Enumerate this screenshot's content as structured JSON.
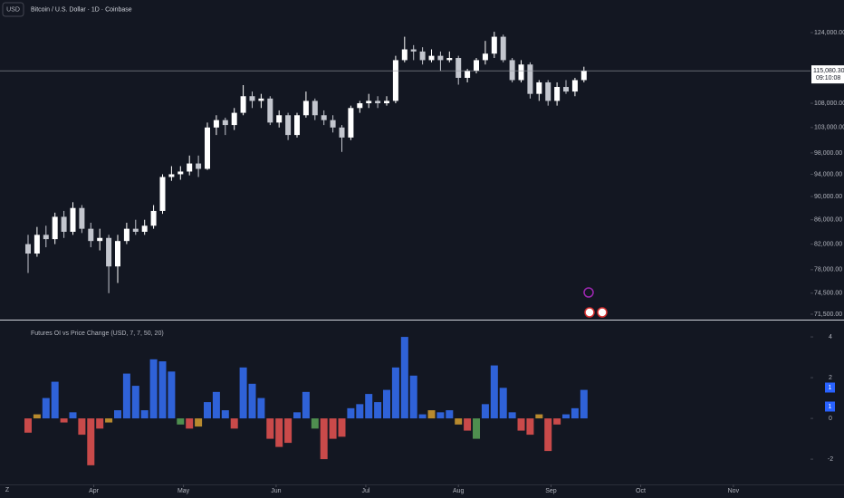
{
  "chart_data": [
    {
      "type": "candlestick",
      "title": "Bitcoin / U.S. Dollar · 1D · Coinbase",
      "currency": "USD",
      "up_color": "#ffffff",
      "down_color": "#c3c6ce",
      "log_scale": true,
      "grid": false,
      "xlim": [
        -3.13,
        87.27
      ],
      "ylim": [
        70870,
        132160
      ],
      "yticks": [
        {
          "value": 71500,
          "label": "71,500.00"
        },
        {
          "value": 74500,
          "label": "74,500.00"
        },
        {
          "value": 78000,
          "label": "78,000.00"
        },
        {
          "value": 82000,
          "label": "82,000.00"
        },
        {
          "value": 86000,
          "label": "86,000.00"
        },
        {
          "value": 90000,
          "label": "90,000.00"
        },
        {
          "value": 94000,
          "label": "94,000.00"
        },
        {
          "value": 98000,
          "label": "98,000.00"
        },
        {
          "value": 103000,
          "label": "103,000.00"
        },
        {
          "value": 108000,
          "label": "108,000.00"
        },
        {
          "value": 124000,
          "label": "124,000.00"
        }
      ],
      "last_price": {
        "value": 115080.3,
        "label": "115,080.30"
      },
      "countdown": "09:10:08",
      "open": [
        82000,
        80500,
        83500,
        82800,
        86500,
        84000,
        88000,
        84500,
        82500,
        83000,
        78500,
        82500,
        84500,
        84000,
        85000,
        87500,
        93500,
        94000,
        94500,
        96000,
        95000,
        103000,
        104500,
        103500,
        106000,
        109500,
        108500,
        109000,
        104000,
        105500,
        101500,
        105500,
        108500,
        105500,
        104500,
        103000,
        101000,
        107000,
        108000,
        108500,
        108000,
        108500,
        117500,
        120000,
        119500,
        117500,
        118500,
        117500,
        118000,
        113500,
        115000,
        117500,
        119000,
        123000,
        117500,
        113000,
        116500,
        110000,
        112500,
        108500,
        111500,
        110500,
        113000
      ],
      "high": [
        83500,
        84800,
        85000,
        87200,
        87500,
        89000,
        88500,
        85500,
        84500,
        83500,
        83500,
        85500,
        86000,
        86000,
        88500,
        94000,
        95500,
        95500,
        97500,
        97500,
        104000,
        105500,
        105000,
        107000,
        111900,
        110500,
        110000,
        109500,
        106500,
        106000,
        106000,
        110500,
        109000,
        106500,
        105500,
        103500,
        107500,
        108500,
        110000,
        109500,
        109500,
        118500,
        123000,
        121000,
        120500,
        120000,
        119500,
        119500,
        118500,
        115500,
        118000,
        122000,
        124200,
        123500,
        118000,
        117500,
        117000,
        113000,
        113000,
        112500,
        113000,
        113500,
        116000
      ],
      "low": [
        77500,
        80000,
        81500,
        82000,
        83000,
        83500,
        83800,
        81500,
        81000,
        74500,
        76000,
        82000,
        83500,
        83500,
        84500,
        87000,
        92800,
        93000,
        93800,
        93500,
        94800,
        101500,
        101500,
        102500,
        105500,
        107000,
        107000,
        103500,
        103000,
        100500,
        101000,
        105000,
        104500,
        103500,
        102000,
        98200,
        100500,
        106000,
        107000,
        107000,
        107500,
        108000,
        117000,
        117500,
        116500,
        117000,
        115000,
        117000,
        112000,
        112500,
        114500,
        116500,
        118000,
        117000,
        112500,
        112500,
        109000,
        108500,
        107500,
        107500,
        110000,
        109500,
        112500
      ],
      "close": [
        80500,
        83500,
        82800,
        86500,
        84000,
        88000,
        84500,
        82500,
        83000,
        78500,
        82500,
        84500,
        84000,
        85000,
        87500,
        93500,
        94000,
        94500,
        96000,
        95000,
        103000,
        104500,
        103500,
        106000,
        109500,
        108500,
        109000,
        104000,
        105500,
        101500,
        105500,
        108500,
        105500,
        104500,
        103000,
        101000,
        107000,
        108000,
        108500,
        108000,
        108500,
        117500,
        120000,
        119500,
        117500,
        118500,
        117500,
        118000,
        113500,
        115000,
        117500,
        119000,
        123000,
        117500,
        113000,
        116500,
        110000,
        112500,
        108500,
        111500,
        110500,
        113000,
        115080.3
      ]
    },
    {
      "type": "bar",
      "title": "Futures OI vs Price Change (USD, 7, 7, 50, 20)",
      "xlim": [
        -3.13,
        87.27
      ],
      "ylim": [
        -3.24,
        4.67
      ],
      "yticks": [
        -2,
        0,
        2,
        4
      ],
      "xticks": [
        {
          "value": 7.33,
          "label": "Apr"
        },
        {
          "value": 17.33,
          "label": "May"
        },
        {
          "value": 27.67,
          "label": "Jun"
        },
        {
          "value": 37.67,
          "label": "Jul"
        },
        {
          "value": 48,
          "label": "Aug"
        },
        {
          "value": 58.33,
          "label": "Sep"
        },
        {
          "value": 68.33,
          "label": "Oct"
        },
        {
          "value": 78.67,
          "label": "Nov"
        }
      ],
      "tags": [
        "1",
        "1"
      ],
      "tag_color": "#2962ff",
      "values": [
        -0.7,
        0.2,
        1.0,
        1.8,
        -0.2,
        0.3,
        -0.8,
        -2.3,
        -0.5,
        -0.2,
        0.4,
        2.2,
        1.6,
        0.4,
        2.9,
        2.8,
        2.3,
        -0.3,
        -0.5,
        -0.4,
        0.8,
        1.3,
        0.4,
        -0.5,
        2.5,
        1.7,
        1.0,
        -1.0,
        -1.4,
        -1.2,
        0.3,
        1.3,
        -0.5,
        -2.0,
        -1.0,
        -0.9,
        0.5,
        0.7,
        1.2,
        0.8,
        1.4,
        2.5,
        4.0,
        2.1,
        0.2,
        0.4,
        0.3,
        0.4,
        -0.3,
        -0.6,
        -1.0,
        0.7,
        2.6,
        1.5,
        0.3,
        -0.6,
        -0.8,
        0.2,
        -1.6,
        -0.3,
        0.2,
        0.5,
        1.4
      ],
      "colors": [
        "#c94a4a",
        "#b88a2e",
        "#2f62d8",
        "#2f62d8",
        "#c94a4a",
        "#2f62d8",
        "#c94a4a",
        "#c94a4a",
        "#c94a4a",
        "#b88a2e",
        "#2f62d8",
        "#2f62d8",
        "#2f62d8",
        "#2f62d8",
        "#2f62d8",
        "#2f62d8",
        "#2f62d8",
        "#4f8f4f",
        "#c94a4a",
        "#b88a2e",
        "#2f62d8",
        "#2f62d8",
        "#2f62d8",
        "#c94a4a",
        "#2f62d8",
        "#2f62d8",
        "#2f62d8",
        "#c94a4a",
        "#c94a4a",
        "#c94a4a",
        "#2f62d8",
        "#2f62d8",
        "#4f8f4f",
        "#c94a4a",
        "#c94a4a",
        "#c94a4a",
        "#2f62d8",
        "#2f62d8",
        "#2f62d8",
        "#2f62d8",
        "#2f62d8",
        "#2f62d8",
        "#2f62d8",
        "#2f62d8",
        "#2f62d8",
        "#b88a2e",
        "#2f62d8",
        "#2f62d8",
        "#b88a2e",
        "#c94a4a",
        "#4f8f4f",
        "#2f62d8",
        "#2f62d8",
        "#2f62d8",
        "#2f62d8",
        "#c94a4a",
        "#c94a4a",
        "#b88a2e",
        "#c94a4a",
        "#c94a4a",
        "#2f62d8",
        "#2f62d8",
        "#2f62d8"
      ]
    }
  ]
}
